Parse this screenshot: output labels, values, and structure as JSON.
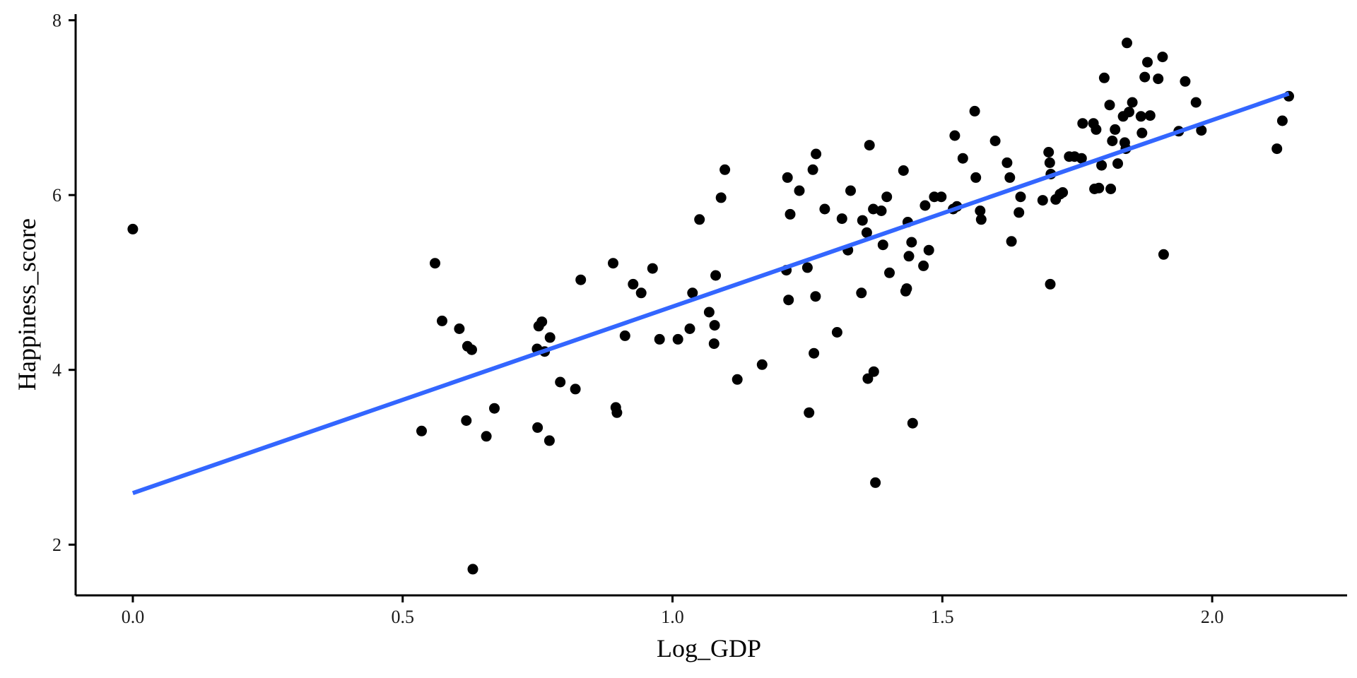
{
  "chart_data": {
    "type": "scatter",
    "title": "",
    "xlabel": "Log_GDP",
    "ylabel": "Happiness_score",
    "xlim": [
      -0.106,
      2.25
    ],
    "ylim": [
      1.42,
      8.07
    ],
    "x_ticks": [
      0.0,
      0.5,
      1.0,
      1.5,
      2.0
    ],
    "x_tick_labels": [
      "0.0",
      "0.5",
      "1.0",
      "1.5",
      "2.0"
    ],
    "y_ticks": [
      2,
      4,
      6,
      8
    ],
    "y_tick_labels": [
      "2",
      "4",
      "6",
      "8"
    ],
    "grid": false,
    "legend": "none",
    "colors": {
      "points": "#000000",
      "fit_line": "#3366FF",
      "axes": "#000000"
    },
    "series": [
      {
        "values": [
          [
            0.0,
            5.61
          ],
          [
            0.535,
            3.3
          ],
          [
            0.56,
            5.22
          ],
          [
            0.573,
            4.56
          ],
          [
            0.605,
            4.47
          ],
          [
            0.618,
            3.42
          ],
          [
            0.62,
            4.27
          ],
          [
            0.628,
            4.23
          ],
          [
            0.63,
            1.72
          ],
          [
            0.655,
            3.24
          ],
          [
            0.67,
            3.56
          ],
          [
            0.749,
            4.24
          ],
          [
            0.75,
            3.34
          ],
          [
            0.752,
            4.5
          ],
          [
            0.758,
            4.55
          ],
          [
            0.763,
            4.21
          ],
          [
            0.772,
            3.19
          ],
          [
            0.773,
            4.37
          ],
          [
            0.792,
            3.86
          ],
          [
            0.82,
            3.78
          ],
          [
            0.83,
            5.03
          ],
          [
            0.89,
            5.22
          ],
          [
            0.895,
            3.57
          ],
          [
            0.897,
            3.51
          ],
          [
            0.912,
            4.39
          ],
          [
            0.927,
            4.98
          ],
          [
            0.942,
            4.88
          ],
          [
            0.963,
            5.16
          ],
          [
            0.976,
            4.35
          ],
          [
            1.01,
            4.35
          ],
          [
            1.032,
            4.47
          ],
          [
            1.037,
            4.88
          ],
          [
            1.05,
            5.72
          ],
          [
            1.068,
            4.66
          ],
          [
            1.077,
            4.3
          ],
          [
            1.078,
            4.51
          ],
          [
            1.08,
            5.08
          ],
          [
            1.09,
            5.97
          ],
          [
            1.097,
            6.29
          ],
          [
            1.12,
            3.89
          ],
          [
            1.166,
            4.06
          ],
          [
            1.211,
            5.14
          ],
          [
            1.213,
            6.2
          ],
          [
            1.215,
            4.8
          ],
          [
            1.218,
            5.78
          ],
          [
            1.235,
            6.05
          ],
          [
            1.25,
            5.17
          ],
          [
            1.253,
            3.51
          ],
          [
            1.26,
            6.29
          ],
          [
            1.262,
            4.19
          ],
          [
            1.265,
            4.84
          ],
          [
            1.266,
            6.47
          ],
          [
            1.282,
            5.84
          ],
          [
            1.305,
            4.43
          ],
          [
            1.314,
            5.73
          ],
          [
            1.325,
            5.37
          ],
          [
            1.33,
            6.05
          ],
          [
            1.35,
            4.88
          ],
          [
            1.352,
            5.71
          ],
          [
            1.36,
            5.57
          ],
          [
            1.362,
            3.9
          ],
          [
            1.365,
            6.57
          ],
          [
            1.372,
            5.84
          ],
          [
            1.373,
            3.98
          ],
          [
            1.376,
            2.71
          ],
          [
            1.387,
            5.82
          ],
          [
            1.39,
            5.43
          ],
          [
            1.397,
            5.98
          ],
          [
            1.402,
            5.11
          ],
          [
            1.428,
            6.28
          ],
          [
            1.432,
            4.9
          ],
          [
            1.434,
            4.93
          ],
          [
            1.436,
            5.69
          ],
          [
            1.438,
            5.3
          ],
          [
            1.443,
            5.46
          ],
          [
            1.445,
            3.39
          ],
          [
            1.465,
            5.19
          ],
          [
            1.468,
            5.88
          ],
          [
            1.475,
            5.37
          ],
          [
            1.485,
            5.98
          ],
          [
            1.498,
            5.98
          ],
          [
            1.52,
            5.84
          ],
          [
            1.523,
            6.68
          ],
          [
            1.527,
            5.87
          ],
          [
            1.538,
            6.42
          ],
          [
            1.56,
            6.96
          ],
          [
            1.562,
            6.2
          ],
          [
            1.57,
            5.82
          ],
          [
            1.572,
            5.72
          ],
          [
            1.598,
            6.62
          ],
          [
            1.62,
            6.37
          ],
          [
            1.625,
            6.2
          ],
          [
            1.628,
            5.47
          ],
          [
            1.642,
            5.8
          ],
          [
            1.645,
            5.98
          ],
          [
            1.686,
            5.94
          ],
          [
            1.697,
            6.49
          ],
          [
            1.699,
            6.37
          ],
          [
            1.7,
            4.98
          ],
          [
            1.701,
            6.24
          ],
          [
            1.71,
            5.95
          ],
          [
            1.718,
            6.01
          ],
          [
            1.723,
            6.03
          ],
          [
            1.735,
            6.44
          ],
          [
            1.745,
            6.44
          ],
          [
            1.758,
            6.42
          ],
          [
            1.76,
            6.82
          ],
          [
            1.78,
            6.82
          ],
          [
            1.782,
            6.07
          ],
          [
            1.785,
            6.75
          ],
          [
            1.79,
            6.08
          ],
          [
            1.795,
            6.34
          ],
          [
            1.8,
            7.34
          ],
          [
            1.81,
            7.03
          ],
          [
            1.812,
            6.07
          ],
          [
            1.815,
            6.62
          ],
          [
            1.82,
            6.75
          ],
          [
            1.825,
            6.36
          ],
          [
            1.835,
            6.9
          ],
          [
            1.838,
            6.6
          ],
          [
            1.84,
            6.53
          ],
          [
            1.842,
            7.74
          ],
          [
            1.846,
            6.95
          ],
          [
            1.852,
            7.06
          ],
          [
            1.868,
            6.9
          ],
          [
            1.87,
            6.71
          ],
          [
            1.875,
            7.35
          ],
          [
            1.88,
            7.52
          ],
          [
            1.885,
            6.91
          ],
          [
            1.9,
            7.33
          ],
          [
            1.908,
            7.58
          ],
          [
            1.91,
            5.32
          ],
          [
            1.938,
            6.73
          ],
          [
            1.95,
            7.3
          ],
          [
            1.97,
            7.06
          ],
          [
            1.98,
            6.74
          ],
          [
            2.12,
            6.53
          ],
          [
            2.13,
            6.85
          ],
          [
            2.142,
            7.13
          ]
        ]
      }
    ],
    "fit_line": {
      "x": [
        0.0,
        2.142
      ],
      "y": [
        2.59,
        7.16
      ]
    }
  }
}
